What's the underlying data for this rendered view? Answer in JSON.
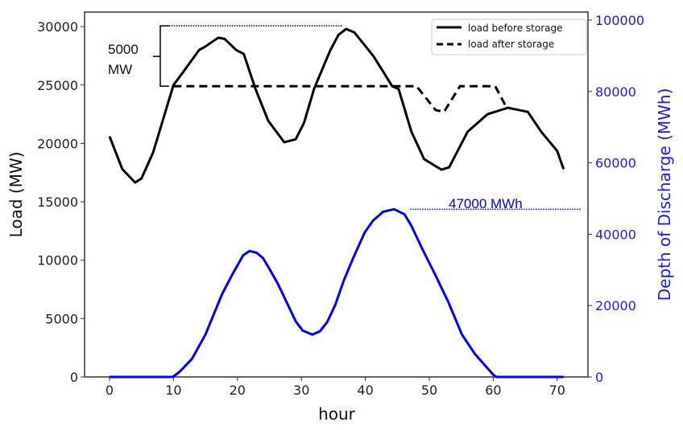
{
  "chart_data": {
    "type": "line",
    "xlabel": "hour",
    "ylabel": "Load (MW)",
    "ylabel_right": "Depth of Discharge (MWh)",
    "xlim": [
      -4,
      74
    ],
    "ylim": [
      0,
      31000
    ],
    "ylim_right": [
      0,
      102000
    ],
    "xticks": [
      0,
      10,
      20,
      30,
      40,
      50,
      60,
      70
    ],
    "yticks": [
      0,
      5000,
      10000,
      15000,
      20000,
      25000,
      30000
    ],
    "yticks_right": [
      0,
      20000,
      40000,
      60000,
      80000,
      100000
    ],
    "grid": false,
    "legend_position": "top-right",
    "colors": {
      "load": "#000000",
      "discharge": "#0000ff",
      "right_axis": "#1a1aff"
    },
    "series": [
      {
        "name": "load before storage",
        "axis": "left",
        "style": "solid",
        "x": [
          0,
          2,
          4,
          5,
          6.8,
          10,
          11.5,
          14,
          15,
          17,
          18,
          19.8,
          21,
          22.8,
          24.8,
          27.3,
          29.1,
          30.4,
          32,
          34.5,
          35.8,
          37,
          38.3,
          41.3,
          44.2,
          45.2,
          47.2,
          49.2,
          51.9,
          53.1,
          56,
          59.1,
          62.3,
          65.4,
          67.5,
          70,
          71
        ],
        "y": [
          20600,
          17800,
          16650,
          17000,
          19200,
          25000,
          26100,
          28000,
          28300,
          29050,
          28950,
          28000,
          27650,
          24700,
          21950,
          20100,
          20350,
          21750,
          24700,
          27950,
          29300,
          29800,
          29500,
          27450,
          24900,
          24650,
          21000,
          18650,
          17750,
          17950,
          21000,
          22500,
          23050,
          22700,
          21000,
          19350,
          17800
        ]
      },
      {
        "name": "load after storage",
        "axis": "left",
        "style": "dashed",
        "x": [
          10,
          48,
          51,
          52.3,
          54.8,
          60.3,
          62
        ],
        "y": [
          24900,
          24900,
          22850,
          22700,
          24900,
          24900,
          23150
        ]
      },
      {
        "axis": "right",
        "style": "solid",
        "x": [
          0,
          9.9,
          10.9,
          12.9,
          15,
          17.6,
          19.1,
          20.9,
          21.9,
          23,
          24,
          25,
          26.3,
          27.9,
          29.1,
          30.2,
          31.7,
          32.9,
          34,
          35.3,
          36.6,
          38.1,
          39.9,
          41.2,
          42.8,
          44.5,
          46.1,
          47.1,
          48.9,
          51,
          53,
          55.1,
          57.1,
          60,
          60.5,
          71
        ],
        "y": [
          0,
          0,
          1350,
          5100,
          11900,
          23200,
          28400,
          34100,
          35300,
          34800,
          33300,
          30300,
          26200,
          20200,
          15600,
          13000,
          11900,
          12800,
          15300,
          20200,
          26900,
          33300,
          40500,
          43800,
          46300,
          47000,
          45600,
          42700,
          35900,
          28400,
          20900,
          11900,
          6500,
          600,
          0,
          0
        ]
      }
    ],
    "annotations": [
      {
        "text": "5000",
        "text2": "MW",
        "from_load": 30000,
        "to_load": 25000
      },
      {
        "text": "47000 MWh",
        "level": 47000
      }
    ]
  }
}
